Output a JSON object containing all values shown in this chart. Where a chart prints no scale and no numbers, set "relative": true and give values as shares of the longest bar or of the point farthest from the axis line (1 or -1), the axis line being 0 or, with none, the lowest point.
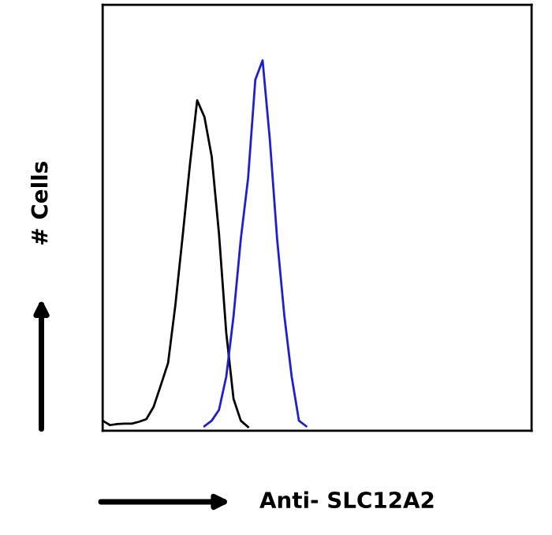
{
  "chart_data": {
    "type": "line",
    "relative": true,
    "xlabel": "Anti- SLC12A2",
    "ylabel": "# Cells",
    "grid": false,
    "legend": false,
    "marker": "none",
    "line_style": "solid",
    "categories": [
      null,
      null,
      null,
      null,
      null,
      null,
      null,
      null,
      null,
      null,
      null,
      null,
      null,
      null,
      null,
      null,
      null,
      null,
      null,
      null,
      null,
      null,
      null,
      null,
      null,
      null,
      null,
      null,
      null,
      null,
      null,
      null,
      null,
      null,
      null,
      null,
      null,
      null,
      null,
      null,
      null,
      null,
      null,
      null,
      null,
      null,
      null,
      null,
      null,
      null,
      null,
      null,
      null,
      null,
      null,
      null,
      null,
      null,
      null,
      null
    ],
    "series": [
      {
        "color": "#000000",
        "values": [
          0.027,
          0.015,
          0.018,
          0.019,
          0.019,
          0.024,
          0.031,
          0.064,
          0.123,
          0.183,
          0.339,
          0.525,
          0.718,
          0.892,
          0.847,
          0.74,
          0.532,
          0.264,
          0.086,
          0.027,
          0.01,
          null,
          null,
          null,
          null,
          null,
          null,
          null,
          null,
          null,
          null,
          null,
          null,
          null,
          null,
          null,
          null,
          null,
          null,
          null,
          null,
          null,
          null,
          null,
          null,
          null,
          null,
          null,
          null,
          null,
          null,
          null,
          null,
          null,
          null,
          null,
          null,
          null,
          null,
          null
        ]
      },
      {
        "color": "#1f1fd0",
        "values": [
          null,
          null,
          null,
          null,
          null,
          null,
          null,
          null,
          null,
          null,
          null,
          null,
          null,
          null,
          0.012,
          0.027,
          0.056,
          0.146,
          0.309,
          0.517,
          0.681,
          0.948,
          1.0,
          0.785,
          0.517,
          0.309,
          0.146,
          0.027,
          0.012,
          null,
          null,
          null,
          null,
          null,
          null,
          null,
          null,
          null,
          null,
          null,
          null,
          null,
          null,
          null,
          null,
          null,
          null,
          null,
          null,
          null,
          null,
          null,
          null,
          null,
          null,
          null,
          null,
          null,
          null,
          null
        ]
      }
    ]
  }
}
